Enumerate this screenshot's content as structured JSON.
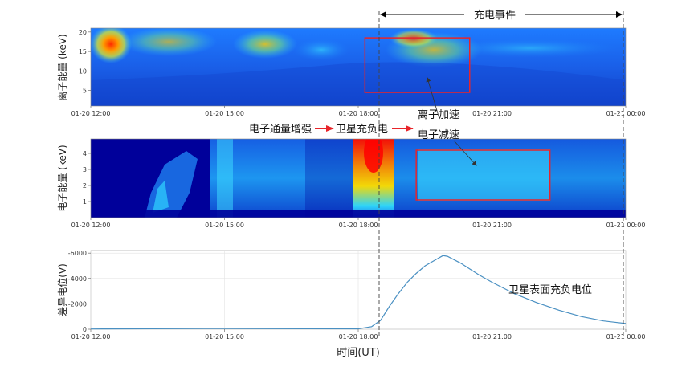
{
  "figure": {
    "event_label": "充电事件",
    "chain_labels": [
      "电子通量增强",
      "卫星充负电",
      "离子加速"
    ],
    "electron_decel_label": "电子减速",
    "potential_label": "卫星表面充负电位",
    "xlabel": "时间(UT)"
  },
  "colors": {
    "spectrogram_low": "#00008f",
    "spectrogram_high": "#ff0000",
    "potential_line": "#4a90c2",
    "highlight_box": "#e8242a",
    "arrow": "#e8242a"
  },
  "chart_data": [
    {
      "type": "heatmap",
      "ylabel": "离子能量 (keV)",
      "yticks": [
        5,
        10,
        15,
        20
      ],
      "ylim": [
        1,
        21
      ],
      "x_ticks": [
        "01-20 12:00",
        "01-20 15:00",
        "01-20 18:00",
        "01-20 21:00",
        "01-21 00:00"
      ],
      "xlim_hours": [
        12,
        24
      ],
      "highlight_box": {
        "x_hours": [
          18.15,
          20.5
        ],
        "y": [
          4.5,
          18.5
        ]
      }
    },
    {
      "type": "heatmap",
      "ylabel": "电子能量 (keV)",
      "yticks": [
        1,
        2,
        3,
        4
      ],
      "ylim": [
        0,
        4.9
      ],
      "x_ticks": [
        "01-20 12:00",
        "01-20 15:00",
        "01-20 18:00",
        "01-20 21:00",
        "01-21 00:00"
      ],
      "xlim_hours": [
        12,
        24
      ],
      "highlight_box": {
        "x_hours": [
          19.3,
          22.3
        ],
        "y": [
          1.1,
          4.2
        ]
      }
    },
    {
      "type": "line",
      "ylabel": "差异电位(V)",
      "yticks": [
        -6000,
        -4000,
        -2000,
        0
      ],
      "ylim": [
        0,
        -6200
      ],
      "x_ticks": [
        "01-20 12:00",
        "01-20 15:00",
        "01-20 18:00",
        "01-20 21:00",
        "01-21 00:00"
      ],
      "xlim_hours": [
        12,
        24
      ],
      "grid": true,
      "series": [
        {
          "x_hours": [
            12,
            15,
            18,
            18.3,
            18.5,
            18.7,
            18.9,
            19.1,
            19.3,
            19.5,
            19.7,
            19.9,
            20.0,
            20.3,
            20.7,
            21.0,
            21.5,
            22.0,
            22.5,
            23.0,
            23.5,
            24.0
          ],
          "values": [
            -20,
            -60,
            -30,
            -200,
            -700,
            -1800,
            -2800,
            -3700,
            -4400,
            -5000,
            -5400,
            -5800,
            -5750,
            -5200,
            -4300,
            -3700,
            -2800,
            -2100,
            -1500,
            -1000,
            -650,
            -450
          ]
        }
      ]
    }
  ]
}
